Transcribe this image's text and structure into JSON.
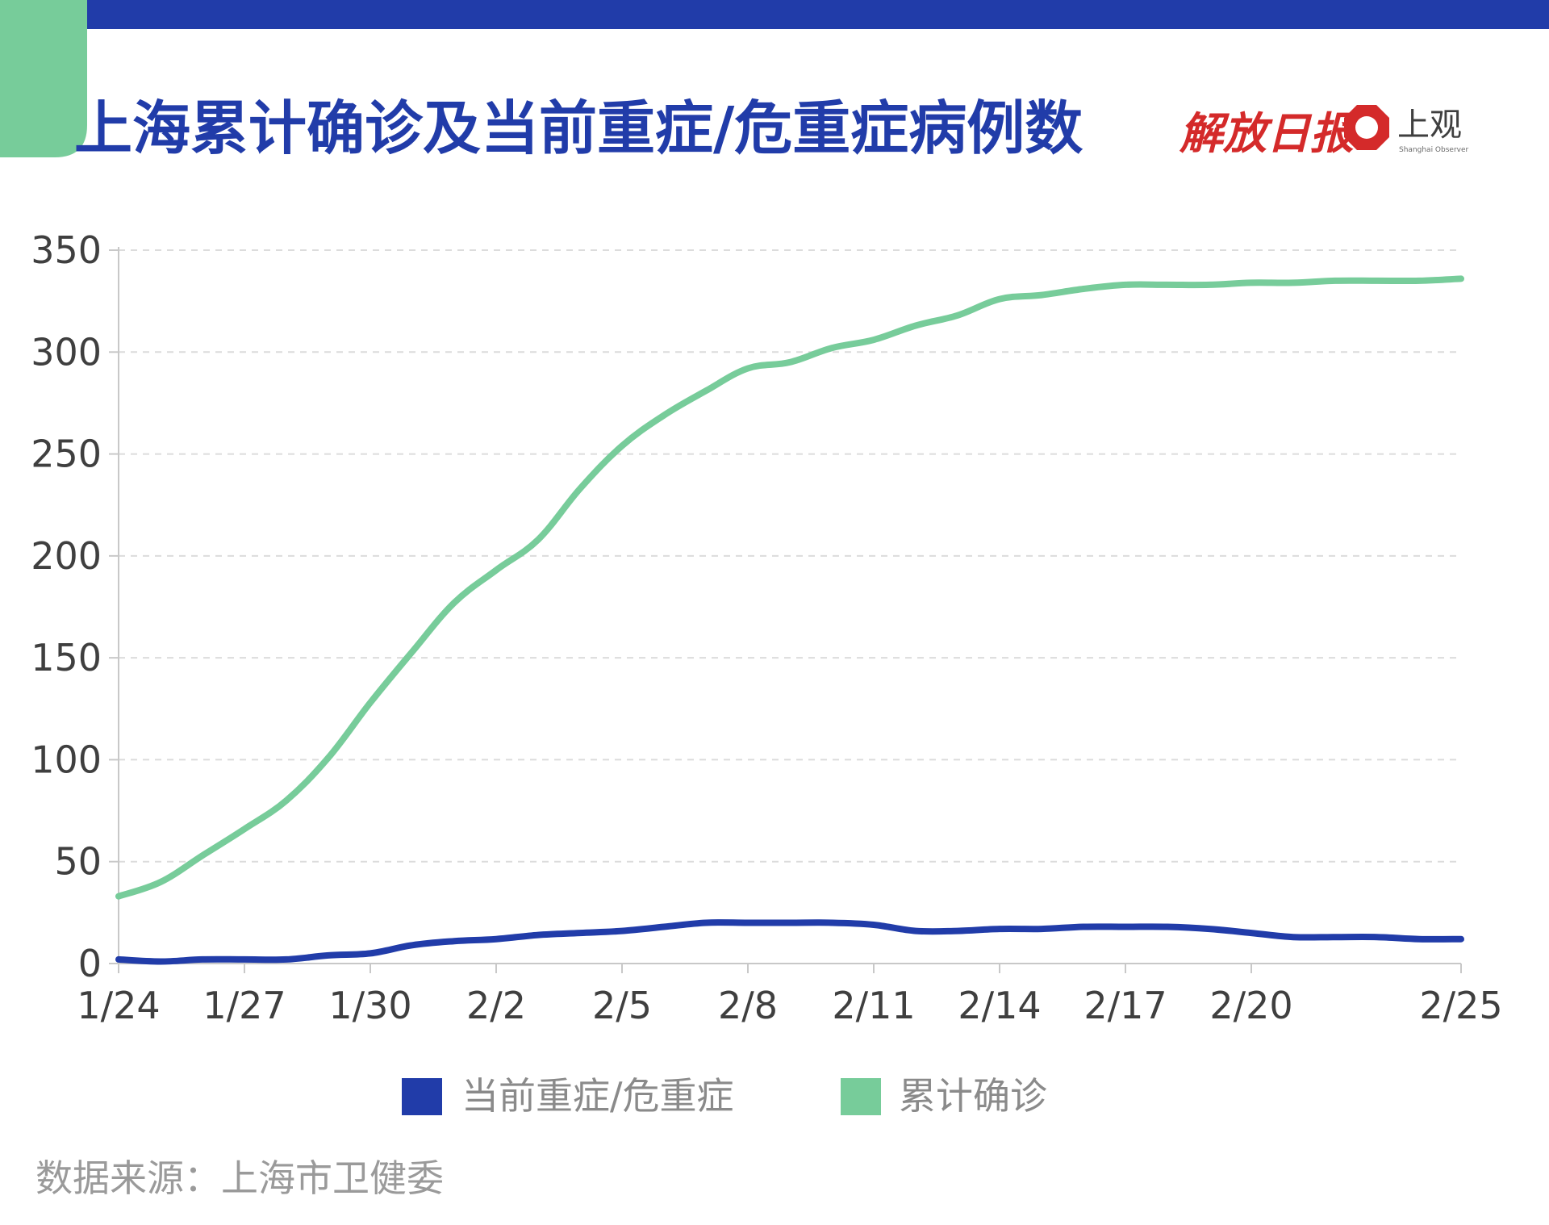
{
  "colors": {
    "brand_blue": "#213ca9",
    "accent_green": "#77cc9a",
    "axis_gray": "#c8c8c8",
    "grid_gray": "#dcdcdc",
    "text_dark": "#3f3f3f",
    "text_light": "#8a8a8a",
    "logo_red": "#d42a2a"
  },
  "header": {
    "title": "上海累计确诊及当前重症/危重症病例数"
  },
  "logos": {
    "jiefang_daily": "解放日报",
    "shanghai_observer": "上观",
    "shanghai_observer_small": "Shanghai Observer"
  },
  "chart_data": {
    "type": "line",
    "x": [
      "1/24",
      "1/25",
      "1/26",
      "1/27",
      "1/28",
      "1/29",
      "1/30",
      "1/31",
      "2/1",
      "2/2",
      "2/3",
      "2/4",
      "2/5",
      "2/6",
      "2/7",
      "2/8",
      "2/9",
      "2/10",
      "2/11",
      "2/12",
      "2/13",
      "2/14",
      "2/15",
      "2/16",
      "2/17",
      "2/18",
      "2/19",
      "2/20",
      "2/21",
      "2/22",
      "2/23",
      "2/24",
      "2/25"
    ],
    "x_tick_labels": [
      "1/24",
      "1/27",
      "1/30",
      "2/2",
      "2/5",
      "2/8",
      "2/11",
      "2/14",
      "2/17",
      "2/20",
      "2/25"
    ],
    "series": [
      {
        "name": "累计确诊",
        "color": "#77cc9a",
        "values": [
          33,
          40,
          53,
          66,
          80,
          101,
          128,
          153,
          177,
          193,
          208,
          233,
          254,
          269,
          281,
          292,
          295,
          302,
          306,
          313,
          318,
          326,
          328,
          331,
          333,
          333,
          333,
          334,
          334,
          335,
          335,
          335,
          336
        ]
      },
      {
        "name": "当前重症/危重症",
        "color": "#213ca9",
        "values": [
          2,
          1,
          2,
          2,
          2,
          4,
          5,
          9,
          11,
          12,
          14,
          15,
          16,
          18,
          20,
          20,
          20,
          20,
          19,
          16,
          16,
          17,
          17,
          18,
          18,
          18,
          17,
          15,
          13,
          13,
          13,
          12,
          12
        ]
      }
    ],
    "yticks": [
      0,
      50,
      100,
      150,
      200,
      250,
      300,
      350
    ],
    "ylim": [
      0,
      350
    ],
    "grid": true,
    "legend_position": "bottom"
  },
  "legend": {
    "items": [
      {
        "label": "当前重症/危重症",
        "color": "#213ca9"
      },
      {
        "label": "累计确诊",
        "color": "#77cc9a"
      }
    ]
  },
  "footer": {
    "source": "数据来源：上海市卫健委"
  }
}
